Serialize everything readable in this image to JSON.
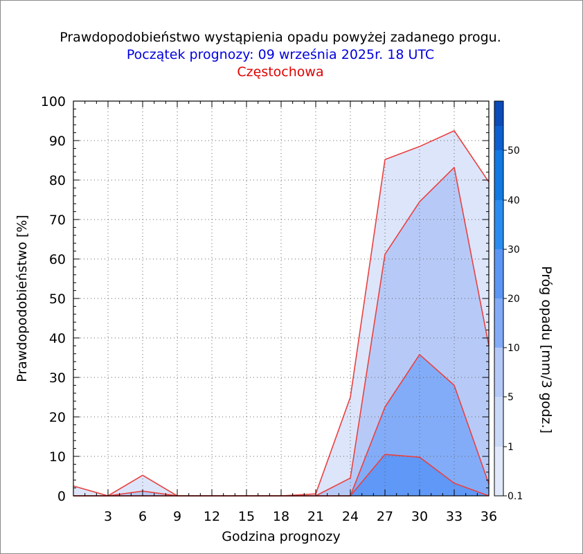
{
  "title": "Prawdopodobieństwo wystąpienia opadu powyżej zadanego progu.",
  "subtitle": "Początek prognozy: 09 września 2025r. 18 UTC",
  "location": "Częstochowa",
  "chart_data": {
    "type": "area",
    "xlabel": "Godzina prognozy",
    "ylabel": "Prawdopodobieństwo [%]",
    "xlim": [
      0,
      36
    ],
    "ylim": [
      0,
      100
    ],
    "x": [
      0,
      3,
      6,
      9,
      12,
      15,
      18,
      21,
      24,
      27,
      30,
      33,
      36
    ],
    "x_ticks": [
      "3",
      "6",
      "9",
      "12",
      "15",
      "18",
      "21",
      "24",
      "27",
      "30",
      "33",
      "36"
    ],
    "y_ticks": [
      "0",
      "10",
      "20",
      "30",
      "40",
      "50",
      "60",
      "70",
      "80",
      "90",
      "100"
    ],
    "grid": true,
    "colorbar_label": "Próg opadu [mm/3 godz.]",
    "colorbar_ticks": [
      "0.1",
      "1",
      "5",
      "10",
      "20",
      "30",
      "40",
      "50"
    ],
    "colorbar_colors": [
      "#e0e8fa",
      "#cbd9f8",
      "#b4c9f7",
      "#82abf8",
      "#5b96f5",
      "#2a8cf0",
      "#1278e2",
      "#0d5fcf",
      "#0a4bb9",
      "#073aa3"
    ],
    "series": [
      {
        "name": "0.1",
        "color": "#dde5fa",
        "values": [
          2.5,
          0,
          5.2,
          0,
          0,
          0,
          0,
          0.5,
          25,
          85.2,
          88.5,
          92.5,
          79.5
        ]
      },
      {
        "name": "1",
        "color": "#b7caf7",
        "values": [
          0,
          0,
          1.2,
          0,
          0,
          0,
          0,
          0,
          4.5,
          61.2,
          74.5,
          83.2,
          38
        ]
      },
      {
        "name": "5",
        "color": "#83acf8",
        "values": [
          0,
          0,
          0,
          0,
          0,
          0,
          0,
          0,
          0,
          22.5,
          35.8,
          28,
          3
        ]
      },
      {
        "name": "10",
        "color": "#5f98f6",
        "values": [
          0,
          0,
          0,
          0,
          0,
          0,
          0,
          0,
          0,
          10.5,
          9.8,
          3.2,
          0
        ]
      }
    ],
    "line_color": "#e8413f"
  }
}
